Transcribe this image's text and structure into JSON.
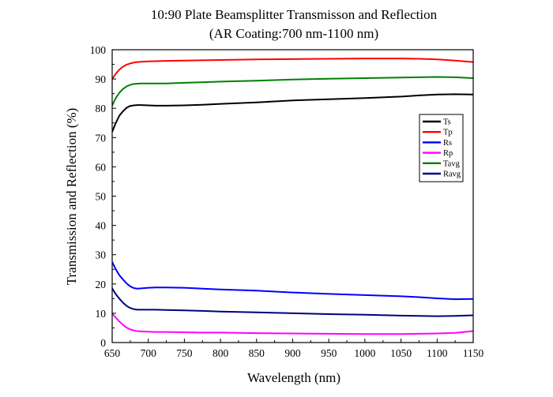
{
  "chart_data": {
    "type": "line",
    "title": "10:90 Plate Beamsplitter Transmisson and Reflection",
    "subtitle": "(AR Coating:700 nm-1100 nm)",
    "xlabel": "Wavelength (nm)",
    "ylabel": "Transmission and Reflection (%)",
    "xlim": [
      650,
      1150
    ],
    "ylim": [
      0,
      100
    ],
    "xticks": [
      650,
      700,
      750,
      800,
      850,
      900,
      950,
      1000,
      1050,
      1100,
      1150
    ],
    "yticks": [
      0,
      10,
      20,
      30,
      40,
      50,
      60,
      70,
      80,
      90,
      100
    ],
    "grid": false,
    "legend_position": "right-middle",
    "x": [
      650,
      655,
      660,
      665,
      670,
      675,
      680,
      685,
      690,
      700,
      710,
      725,
      750,
      775,
      800,
      850,
      900,
      950,
      1000,
      1050,
      1075,
      1100,
      1125,
      1150
    ],
    "series": [
      {
        "name": "Ts",
        "color": "#000000",
        "values": [
          72.0,
          75.0,
          77.5,
          79.0,
          80.2,
          80.8,
          81.0,
          81.1,
          81.1,
          81.0,
          80.9,
          80.9,
          81.0,
          81.2,
          81.5,
          82.0,
          82.7,
          83.1,
          83.5,
          84.0,
          84.4,
          84.7,
          84.8,
          84.7
        ]
      },
      {
        "name": "Tp",
        "color": "#ff0000",
        "values": [
          90.0,
          91.8,
          93.2,
          94.2,
          94.9,
          95.3,
          95.6,
          95.8,
          95.9,
          96.0,
          96.1,
          96.2,
          96.3,
          96.4,
          96.5,
          96.7,
          96.8,
          96.9,
          97.0,
          97.0,
          96.9,
          96.7,
          96.3,
          95.8
        ]
      },
      {
        "name": "Rs",
        "color": "#0000ff",
        "values": [
          27.5,
          25.0,
          23.0,
          21.5,
          20.2,
          19.2,
          18.6,
          18.4,
          18.5,
          18.7,
          18.8,
          18.8,
          18.7,
          18.4,
          18.1,
          17.7,
          17.1,
          16.6,
          16.2,
          15.8,
          15.5,
          15.1,
          14.8,
          14.9
        ]
      },
      {
        "name": "Rp",
        "color": "#ff00ff",
        "values": [
          10.0,
          8.5,
          7.2,
          6.0,
          5.1,
          4.5,
          4.1,
          3.9,
          3.8,
          3.7,
          3.6,
          3.6,
          3.5,
          3.4,
          3.4,
          3.2,
          3.1,
          3.0,
          2.9,
          2.9,
          3.0,
          3.1,
          3.3,
          3.9
        ]
      },
      {
        "name": "Tavg",
        "color": "#008000",
        "values": [
          81.0,
          83.5,
          85.3,
          86.6,
          87.5,
          88.0,
          88.3,
          88.4,
          88.5,
          88.5,
          88.5,
          88.5,
          88.7,
          88.9,
          89.1,
          89.4,
          89.8,
          90.1,
          90.3,
          90.5,
          90.6,
          90.7,
          90.6,
          90.3
        ]
      },
      {
        "name": "Ravg",
        "color": "#000080",
        "values": [
          18.5,
          16.5,
          15.0,
          13.6,
          12.5,
          11.8,
          11.4,
          11.2,
          11.2,
          11.2,
          11.2,
          11.1,
          11.0,
          10.8,
          10.6,
          10.3,
          10.0,
          9.7,
          9.5,
          9.2,
          9.1,
          9.0,
          9.1,
          9.3
        ]
      }
    ]
  }
}
